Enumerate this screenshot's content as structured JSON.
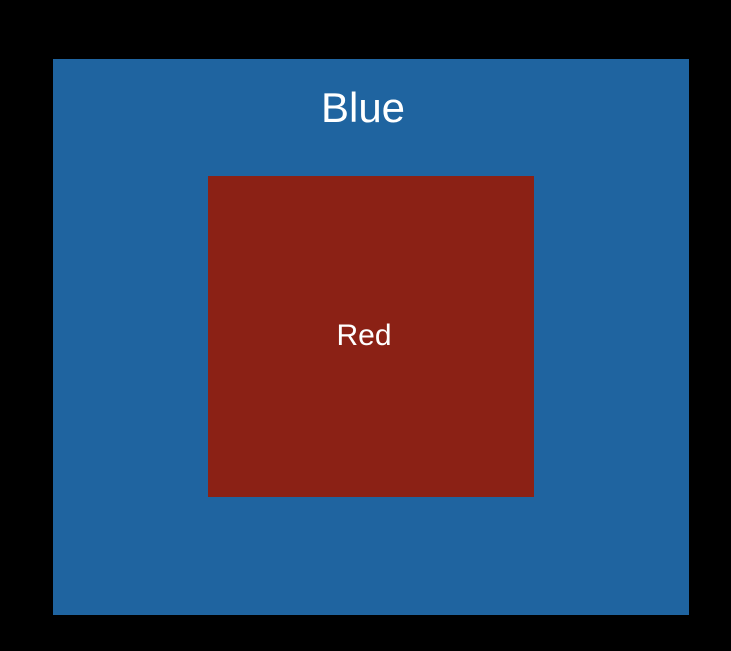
{
  "outer_box": {
    "label": "Blue",
    "color": "#1f64a0"
  },
  "inner_box": {
    "label": "Red",
    "color": "#8b2115"
  },
  "background_color": "#000000"
}
